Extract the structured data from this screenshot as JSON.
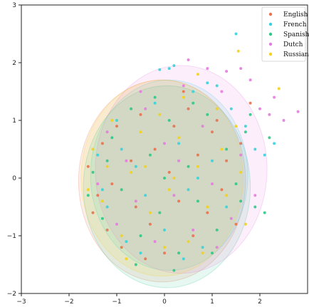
{
  "chart_data": {
    "type": "scatter",
    "xlim": [
      -3,
      3
    ],
    "ylim": [
      -2,
      3
    ],
    "x_ticks": [
      -3,
      -2,
      -1,
      0,
      1,
      2
    ],
    "y_ticks": [
      -2,
      -1,
      0,
      1,
      2,
      3
    ],
    "grid": false,
    "legend_position": "top-right",
    "series": [
      {
        "name": "English",
        "color": "#e8734f",
        "circle": {
          "cx": -0.05,
          "cy": -0.05,
          "r": 1.75
        },
        "points": [
          [
            -1.6,
            0.2
          ],
          [
            -1.4,
            -0.3
          ],
          [
            -1.3,
            0.6
          ],
          [
            -1.2,
            -0.9
          ],
          [
            -1.0,
            0.9
          ],
          [
            -0.9,
            -1.2
          ],
          [
            -0.7,
            0.3
          ],
          [
            -0.6,
            -0.5
          ],
          [
            -0.5,
            1.1
          ],
          [
            -0.3,
            -0.8
          ],
          [
            -0.2,
            0.5
          ],
          [
            0.0,
            -1.3
          ],
          [
            0.1,
            0.1
          ],
          [
            0.2,
            0.9
          ],
          [
            0.3,
            -0.4
          ],
          [
            0.5,
            1.2
          ],
          [
            0.6,
            -1.0
          ],
          [
            0.7,
            0.4
          ],
          [
            0.9,
            -0.6
          ],
          [
            1.0,
            0.8
          ],
          [
            1.2,
            -0.2
          ],
          [
            1.3,
            0.3
          ],
          [
            1.5,
            -0.8
          ],
          [
            1.6,
            0.6
          ],
          [
            1.8,
            1.3
          ],
          [
            -1.1,
            -0.1
          ],
          [
            -0.4,
            -1.4
          ],
          [
            0.4,
            1.5
          ],
          [
            1.1,
            1.0
          ],
          [
            -1.5,
            -0.6
          ]
        ]
      },
      {
        "name": "French",
        "color": "#35d4dc",
        "circle": {
          "cx": 0.1,
          "cy": 0.05,
          "r": 1.65
        },
        "points": [
          [
            -1.4,
            0.4
          ],
          [
            -1.2,
            -0.5
          ],
          [
            -1.0,
            1.0
          ],
          [
            -0.8,
            -1.1
          ],
          [
            -0.6,
            0.2
          ],
          [
            -0.4,
            -0.3
          ],
          [
            -0.2,
            1.3
          ],
          [
            0.0,
            -0.9
          ],
          [
            0.1,
            1.9
          ],
          [
            0.2,
            1.95
          ],
          [
            0.3,
            0.6
          ],
          [
            0.5,
            -0.2
          ],
          [
            0.6,
            1.5
          ],
          [
            0.8,
            -1.2
          ],
          [
            1.0,
            0.3
          ],
          [
            1.1,
            1.6
          ],
          [
            1.3,
            -0.5
          ],
          [
            1.5,
            2.5
          ],
          [
            1.7,
            0.9
          ],
          [
            1.9,
            0.5
          ],
          [
            2.1,
            0.4
          ],
          [
            2.3,
            0.6
          ],
          [
            -0.1,
            1.88
          ],
          [
            0.9,
            1.65
          ],
          [
            -1.3,
            -0.2
          ],
          [
            -0.5,
            -1.3
          ],
          [
            0.4,
            -1.4
          ],
          [
            1.4,
            1.2
          ],
          [
            -0.9,
            0.5
          ],
          [
            0.7,
            0.0
          ]
        ]
      },
      {
        "name": "Spanish",
        "color": "#2ec98a",
        "circle": {
          "cx": 0.05,
          "cy": -0.15,
          "r": 1.75
        },
        "points": [
          [
            -1.5,
            0.1
          ],
          [
            -1.3,
            -0.7
          ],
          [
            -1.1,
            0.7
          ],
          [
            -0.9,
            -0.2
          ],
          [
            -0.7,
            1.2
          ],
          [
            -0.5,
            -1.0
          ],
          [
            -0.3,
            0.4
          ],
          [
            -0.1,
            -0.6
          ],
          [
            0.1,
            1.0
          ],
          [
            0.3,
            -1.3
          ],
          [
            0.5,
            0.2
          ],
          [
            0.7,
            -0.4
          ],
          [
            0.9,
            1.1
          ],
          [
            1.1,
            -0.9
          ],
          [
            1.3,
            0.5
          ],
          [
            1.5,
            -0.1
          ],
          [
            1.7,
            0.8
          ],
          [
            1.9,
            -0.5
          ],
          [
            2.1,
            -0.6
          ],
          [
            2.2,
            0.7
          ],
          [
            1.8,
            1.1
          ],
          [
            -0.6,
            -1.5
          ],
          [
            0.2,
            -1.6
          ],
          [
            1.0,
            -1.3
          ],
          [
            -1.2,
            0.3
          ],
          [
            -0.2,
            1.4
          ],
          [
            0.6,
            1.3
          ],
          [
            1.6,
            -0.4
          ],
          [
            -1.6,
            -0.3
          ],
          [
            0.0,
            0.0
          ]
        ]
      },
      {
        "name": "Dutch",
        "color": "#e47ce0",
        "circle": {
          "cx": 0.35,
          "cy": 0.15,
          "r": 1.8
        },
        "points": [
          [
            -1.4,
            -0.1
          ],
          [
            -1.2,
            0.8
          ],
          [
            -1.0,
            -0.8
          ],
          [
            -0.8,
            0.3
          ],
          [
            -0.6,
            -0.4
          ],
          [
            -0.4,
            1.2
          ],
          [
            -0.2,
            -1.1
          ],
          [
            0.0,
            0.6
          ],
          [
            0.2,
            -0.3
          ],
          [
            0.4,
            1.6
          ],
          [
            0.6,
            -0.9
          ],
          [
            0.8,
            0.9
          ],
          [
            1.0,
            -0.1
          ],
          [
            1.2,
            1.5
          ],
          [
            1.4,
            -0.7
          ],
          [
            1.6,
            0.4
          ],
          [
            1.8,
            1.7
          ],
          [
            2.0,
            1.2
          ],
          [
            2.2,
            1.1
          ],
          [
            2.5,
            1.0
          ],
          [
            2.8,
            1.15
          ],
          [
            1.3,
            1.85
          ],
          [
            0.9,
            1.9
          ],
          [
            1.6,
            1.9
          ],
          [
            2.3,
            1.4
          ],
          [
            0.5,
            2.05
          ],
          [
            1.1,
            -1.2
          ],
          [
            -0.5,
            1.5
          ],
          [
            1.9,
            -0.3
          ],
          [
            0.3,
            0.3
          ]
        ]
      },
      {
        "name": "Russian",
        "color": "#f2d21c",
        "circle": {
          "cx": -0.05,
          "cy": 0.0,
          "r": 1.7
        },
        "points": [
          [
            -1.5,
            0.5
          ],
          [
            -1.3,
            -0.4
          ],
          [
            -1.1,
            1.0
          ],
          [
            -0.9,
            -1.0
          ],
          [
            -0.7,
            0.1
          ],
          [
            -0.5,
            0.8
          ],
          [
            -0.3,
            -0.6
          ],
          [
            -0.1,
            1.1
          ],
          [
            0.1,
            -0.2
          ],
          [
            0.3,
            0.7
          ],
          [
            0.5,
            -1.1
          ],
          [
            0.7,
            0.2
          ],
          [
            0.9,
            -0.5
          ],
          [
            1.1,
            1.2
          ],
          [
            1.3,
            -0.3
          ],
          [
            1.5,
            0.9
          ],
          [
            1.7,
            -0.8
          ],
          [
            1.55,
            2.2
          ],
          [
            2.4,
            1.55
          ],
          [
            0.7,
            1.8
          ],
          [
            -0.8,
            -1.4
          ],
          [
            0.0,
            -1.2
          ],
          [
            1.2,
            0.5
          ],
          [
            -1.2,
            0.2
          ],
          [
            0.4,
            1.4
          ],
          [
            -0.4,
            0.2
          ],
          [
            0.8,
            -1.3
          ],
          [
            1.6,
            0.1
          ],
          [
            -1.6,
            -0.2
          ],
          [
            0.2,
            0.0
          ]
        ]
      }
    ]
  }
}
